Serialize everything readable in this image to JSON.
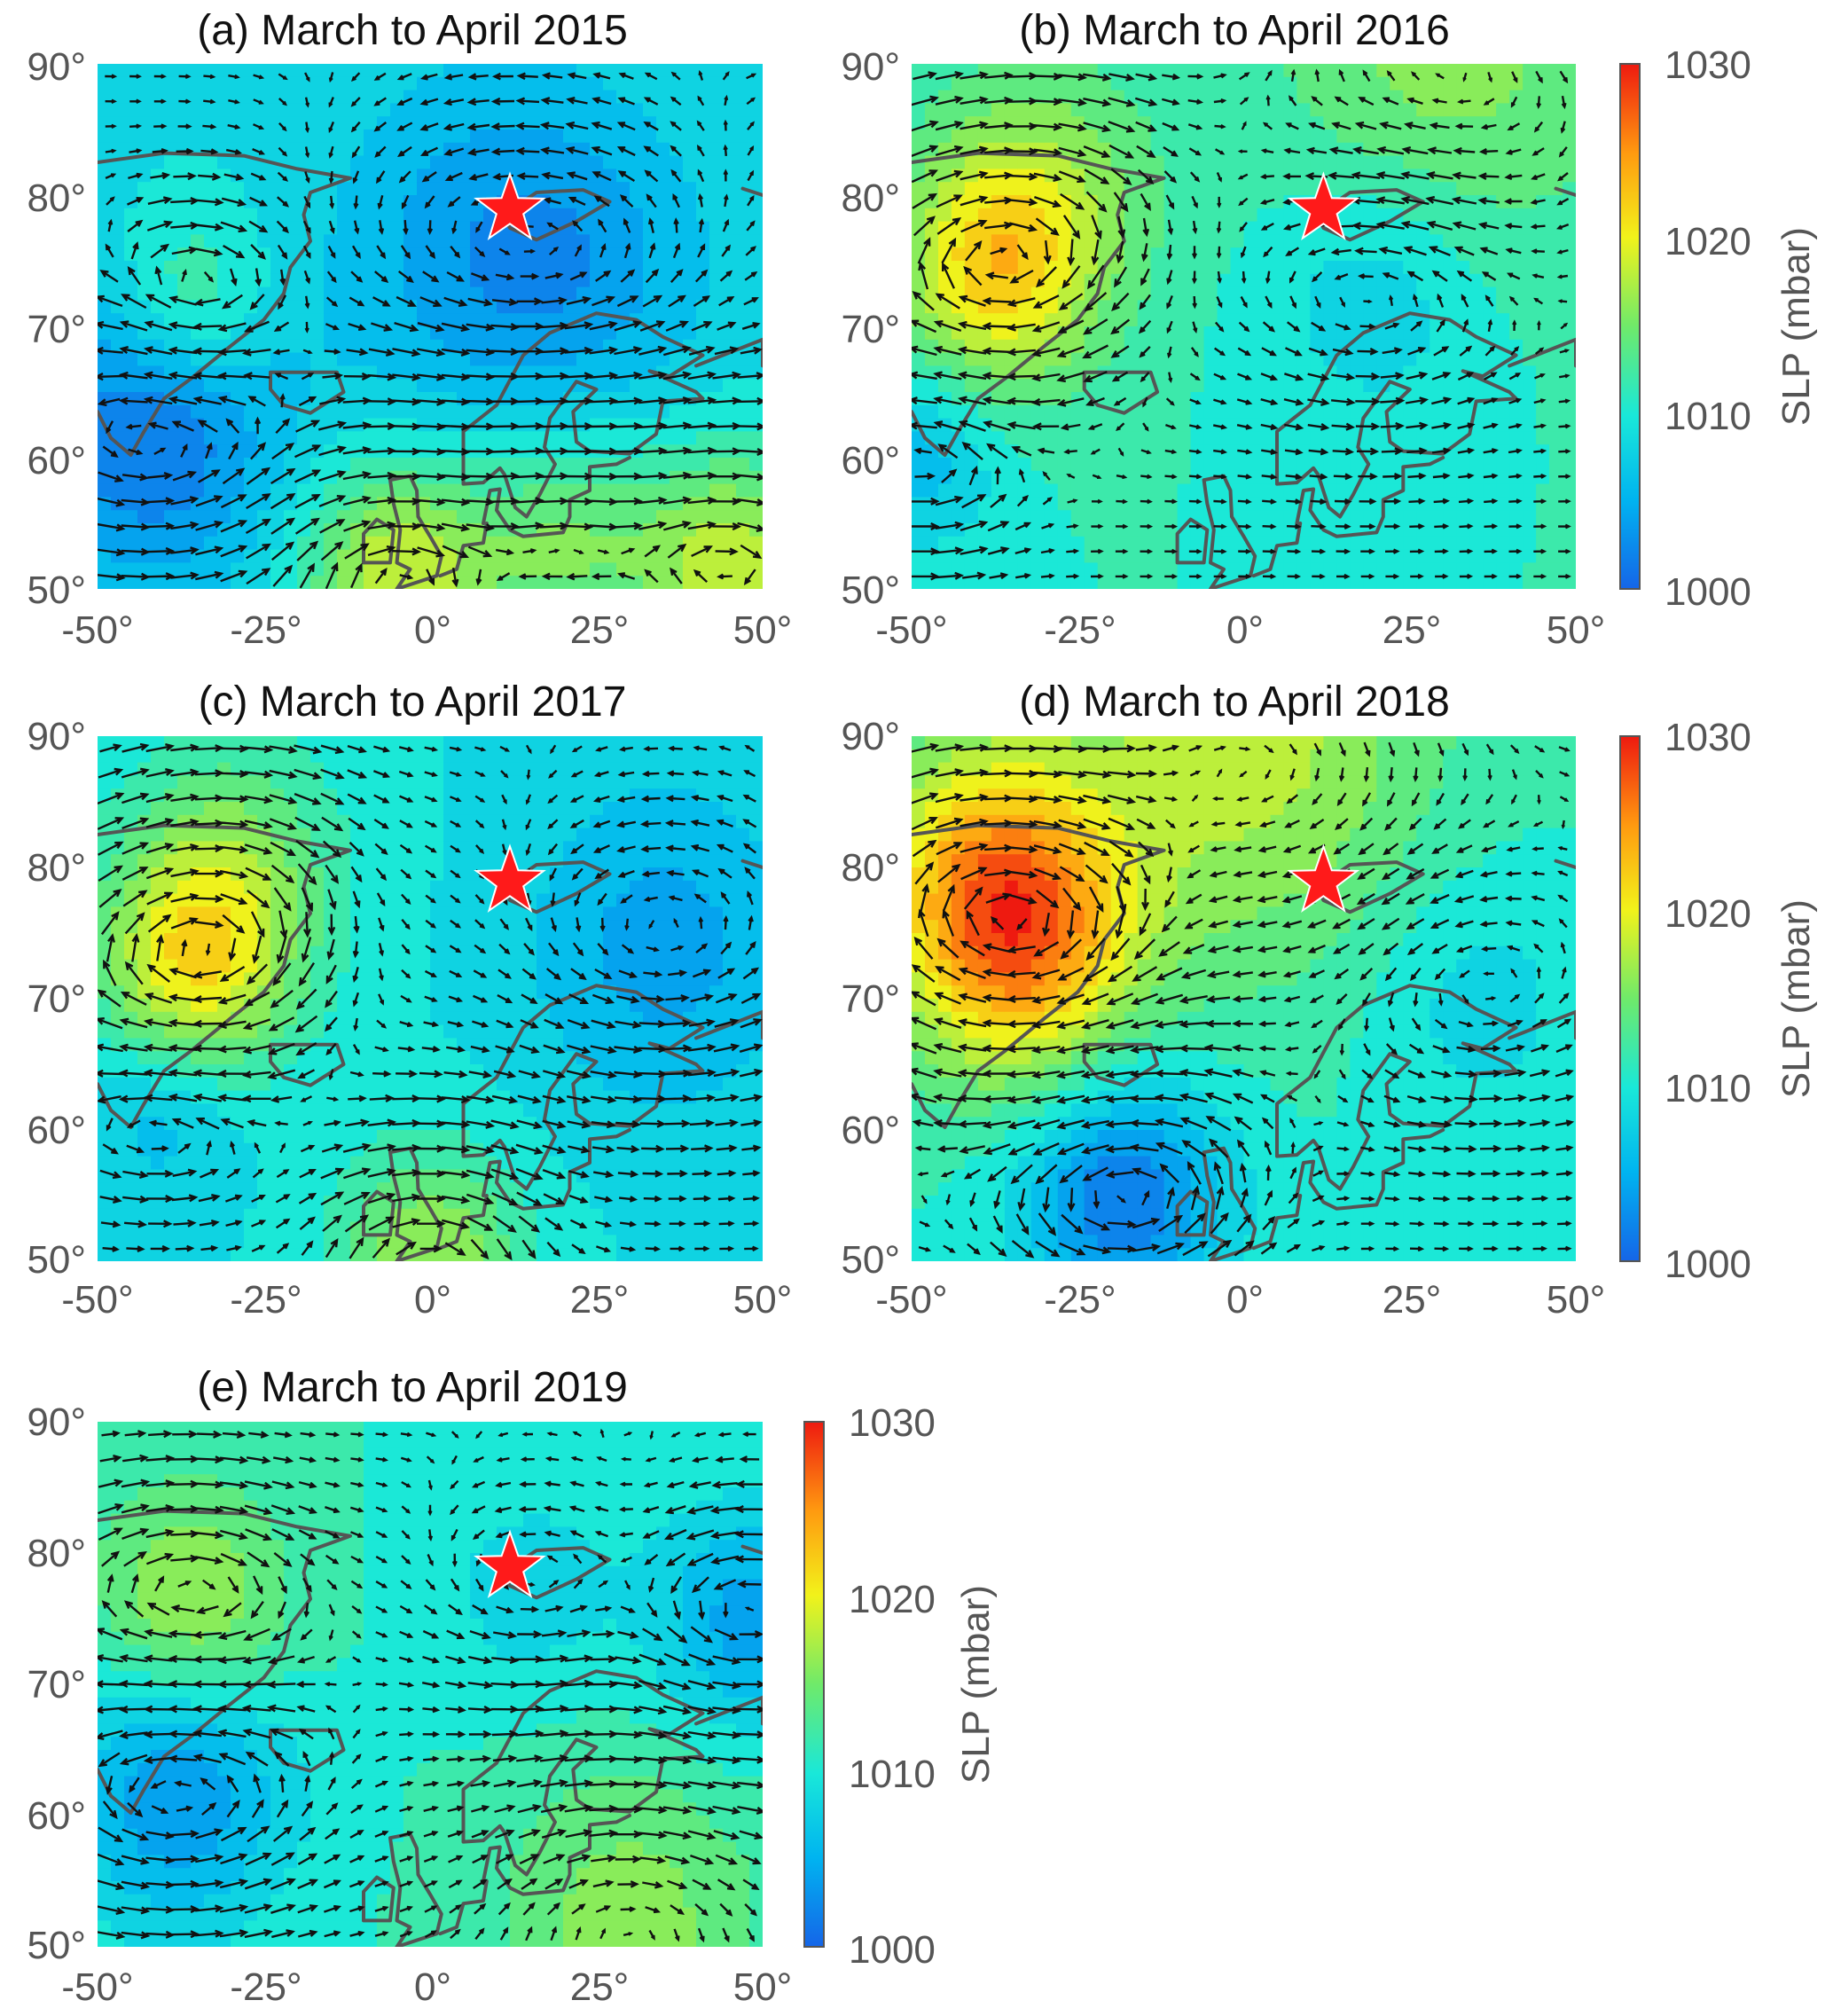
{
  "chart_data": [
    {
      "type": "heatmap",
      "id": "a",
      "title": "(a) March to April 2015",
      "x_ticks": [
        "-50°",
        "-25°",
        "0°",
        "25°",
        "50°"
      ],
      "y_ticks": [
        "90°",
        "80°",
        "70°",
        "60°",
        "50°"
      ],
      "xlim": [
        -50,
        50
      ],
      "ylim": [
        50,
        90
      ],
      "colorbar": false,
      "slp_base": 1009,
      "slp_features": [
        {
          "lon": -42,
          "lat": 62,
          "delta": -8,
          "radius": 14
        },
        {
          "lon": 8,
          "lat": 76,
          "delta": -5,
          "radius": 16
        },
        {
          "lon": 25,
          "lat": 74,
          "delta": -3,
          "radius": 14
        },
        {
          "lon": -36,
          "lat": 72,
          "delta": 6,
          "radius": 8
        },
        {
          "lon": -5,
          "lat": 51,
          "delta": 10,
          "radius": 10
        },
        {
          "lon": 45,
          "lat": 52,
          "delta": 9,
          "radius": 10
        },
        {
          "lon": 20,
          "lat": 54,
          "delta": 6,
          "radius": 10
        }
      ],
      "star": {
        "lon": 12,
        "lat": 78.9
      }
    },
    {
      "type": "heatmap",
      "id": "b",
      "title": "(b) March to April 2016",
      "x_ticks": [
        "-50°",
        "-25°",
        "0°",
        "25°",
        "50°"
      ],
      "y_ticks": [
        "90°",
        "80°",
        "70°",
        "60°",
        "50°"
      ],
      "xlim": [
        -50,
        50
      ],
      "ylim": [
        50,
        90
      ],
      "colorbar": true,
      "slp_base": 1011,
      "slp_features": [
        {
          "lon": -38,
          "lat": 74,
          "delta": 9,
          "radius": 10
        },
        {
          "lon": -30,
          "lat": 80,
          "delta": 5,
          "radius": 12
        },
        {
          "lon": 20,
          "lat": 73,
          "delta": -4,
          "radius": 12
        },
        {
          "lon": -48,
          "lat": 60,
          "delta": -5,
          "radius": 8
        },
        {
          "lon": 30,
          "lat": 90,
          "delta": 5,
          "radius": 18
        }
      ],
      "star": {
        "lon": 12,
        "lat": 78.9
      }
    },
    {
      "type": "heatmap",
      "id": "c",
      "title": "(c) March to April 2017",
      "x_ticks": [
        "-50°",
        "-25°",
        "0°",
        "25°",
        "50°"
      ],
      "y_ticks": [
        "90°",
        "80°",
        "70°",
        "60°",
        "50°"
      ],
      "xlim": [
        -50,
        50
      ],
      "ylim": [
        50,
        90
      ],
      "colorbar": false,
      "slp_base": 1009,
      "slp_features": [
        {
          "lon": -36,
          "lat": 72,
          "delta": 10,
          "radius": 10
        },
        {
          "lon": -30,
          "lat": 80,
          "delta": 6,
          "radius": 12
        },
        {
          "lon": 35,
          "lat": 74,
          "delta": -5,
          "radius": 14
        },
        {
          "lon": -40,
          "lat": 62,
          "delta": -4,
          "radius": 8
        },
        {
          "lon": 0,
          "lat": 50,
          "delta": 8,
          "radius": 10
        }
      ],
      "star": {
        "lon": 12,
        "lat": 78.9
      }
    },
    {
      "type": "heatmap",
      "id": "d",
      "title": "(d) March to April 2018",
      "x_ticks": [
        "-50°",
        "-25°",
        "0°",
        "25°",
        "50°"
      ],
      "y_ticks": [
        "90°",
        "80°",
        "70°",
        "60°",
        "50°"
      ],
      "xlim": [
        -50,
        50
      ],
      "ylim": [
        50,
        90
      ],
      "colorbar": true,
      "slp_base": 1011,
      "slp_features": [
        {
          "lon": -33,
          "lat": 74,
          "delta": 12,
          "radius": 12
        },
        {
          "lon": -40,
          "lat": 80,
          "delta": 8,
          "radius": 12
        },
        {
          "lon": 0,
          "lat": 90,
          "delta": 7,
          "radius": 20
        },
        {
          "lon": -18,
          "lat": 55,
          "delta": -10,
          "radius": 11
        },
        {
          "lon": 35,
          "lat": 70,
          "delta": -3,
          "radius": 12
        }
      ],
      "star": {
        "lon": 12,
        "lat": 78.9
      }
    },
    {
      "type": "heatmap",
      "id": "e",
      "title": "(e) March to April 2019",
      "x_ticks": [
        "-50°",
        "-25°",
        "0°",
        "25°",
        "50°"
      ],
      "y_ticks": [
        "90°",
        "80°",
        "70°",
        "60°",
        "50°"
      ],
      "xlim": [
        -50,
        50
      ],
      "ylim": [
        50,
        90
      ],
      "colorbar": true,
      "slp_base": 1011,
      "slp_features": [
        {
          "lon": -38,
          "lat": 62,
          "delta": -8,
          "radius": 12
        },
        {
          "lon": 48,
          "lat": 75,
          "delta": -7,
          "radius": 10
        },
        {
          "lon": 15,
          "lat": 77,
          "delta": -3,
          "radius": 10
        },
        {
          "lon": -36,
          "lat": 76,
          "delta": 7,
          "radius": 10
        },
        {
          "lon": 30,
          "lat": 52,
          "delta": 5,
          "radius": 14
        }
      ],
      "star": {
        "lon": 12,
        "lat": 78.9
      }
    }
  ],
  "colorbar": {
    "label": "SLP (mbar)",
    "ticks": [
      "1030",
      "1020",
      "1010",
      "1000"
    ],
    "range": [
      1000,
      1030
    ],
    "colormap": "jet"
  },
  "colors": {
    "star": "#ff1a1a",
    "coastline": "#555555",
    "arrow": "#111111"
  }
}
